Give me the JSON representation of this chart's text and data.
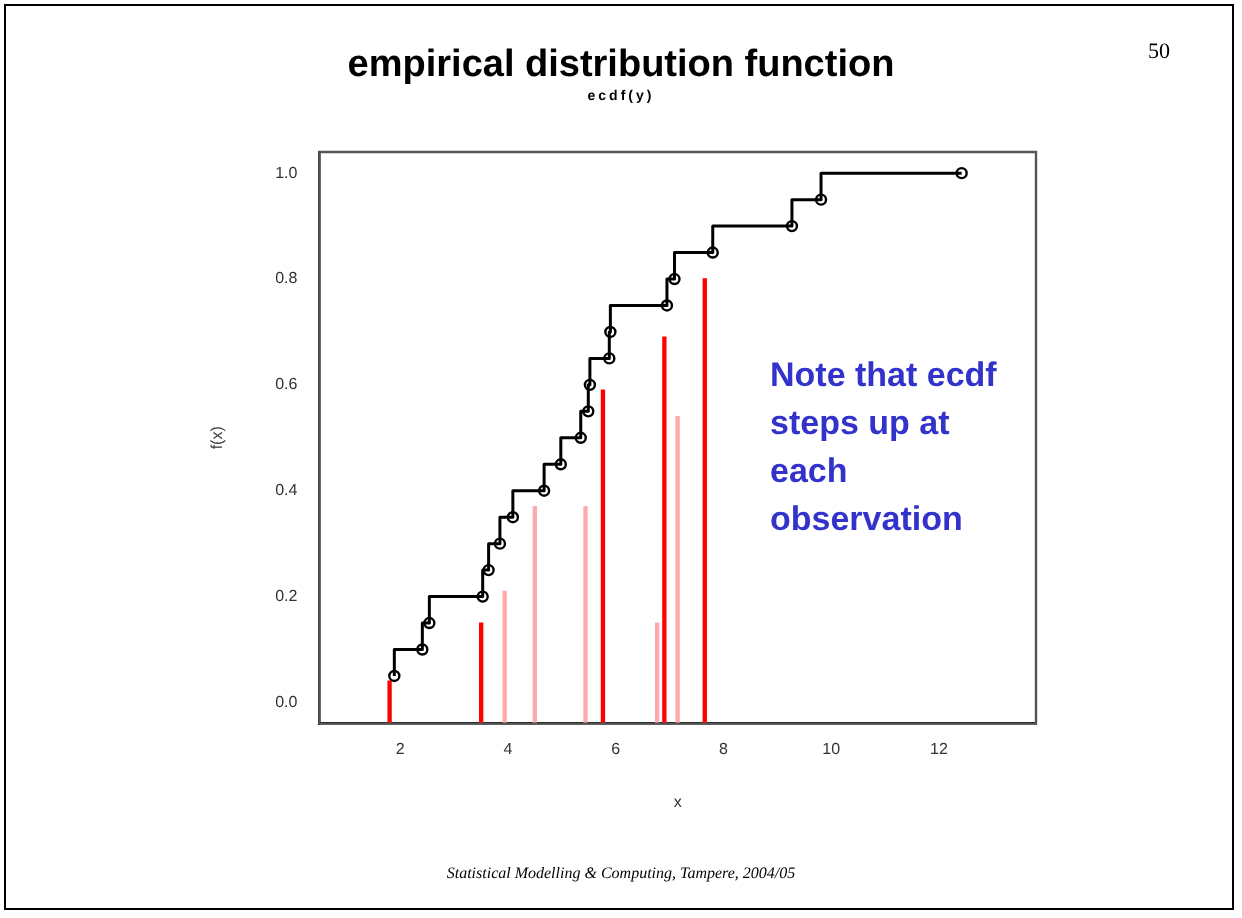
{
  "chart_data": {
    "type": "step",
    "title": "empirical distribution function",
    "subtitle": "ecdf(y)",
    "xlabel": "x",
    "ylabel": "f(x)",
    "annotations": [
      "50",
      "Note that ecdf steps up at each observation",
      "Statistical Modelling & Computing, Tampere, 2004/05"
    ],
    "series": [
      {
        "color": "#000000",
        "x": [
          1.89,
          2.41,
          2.54,
          3.53,
          3.64,
          3.85,
          4.09,
          4.67,
          4.98,
          5.35,
          5.49,
          5.52,
          5.88,
          5.9,
          6.95,
          7.09,
          7.8,
          9.27,
          9.81,
          12.42
        ],
        "values": [
          0.05,
          0.1,
          0.15,
          0.2,
          0.25,
          0.3,
          0.35,
          0.4,
          0.45,
          0.5,
          0.55,
          0.6,
          0.65,
          0.7,
          0.75,
          0.8,
          0.85,
          0.9,
          0.95,
          1.0
        ]
      },
      {
        "type": "bar",
        "color": "#ff0000",
        "x": [
          1.83,
          3.53,
          5.79,
          6.93,
          7.68
        ],
        "base": [
          -0.04,
          -0.04,
          -0.04,
          -0.04,
          -0.04
        ],
        "values": [
          0.08,
          0.19,
          0.63,
          0.73,
          0.84
        ]
      },
      {
        "type": "bar",
        "color": "#ffaaaa",
        "x": [
          3.91,
          4.47,
          5.41,
          6.74,
          7.12
        ],
        "base": [
          -0.04,
          -0.04,
          -0.04,
          -0.04,
          -0.04
        ],
        "values": [
          0.25,
          0.41,
          0.41,
          0.19,
          0.58
        ]
      }
    ],
    "marker": "circle",
    "legend": false,
    "grid": false,
    "xlim": [
      0.5,
      13.8
    ],
    "xticks": [
      2,
      4,
      6,
      8,
      10,
      12
    ],
    "ylim": [
      -0.04,
      1.04
    ],
    "yticks": [
      {
        "value": 0,
        "label": "0.0"
      },
      0.2,
      0.4,
      0.6,
      0.8,
      {
        "value": 1,
        "label": "1.0"
      }
    ]
  }
}
